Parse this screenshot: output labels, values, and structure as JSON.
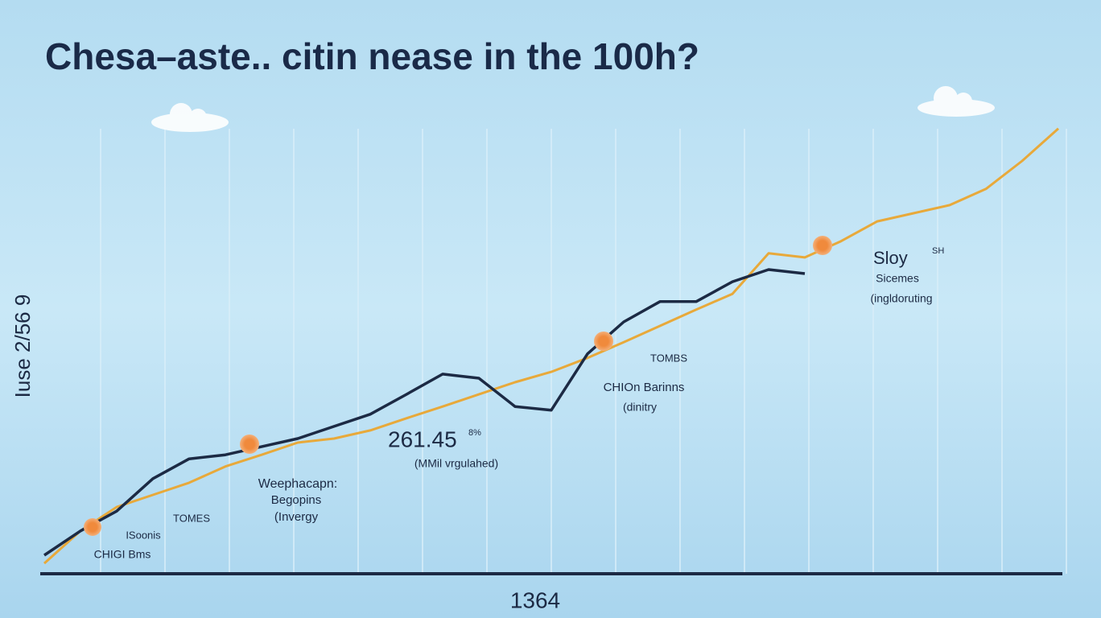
{
  "chart_data": {
    "type": "line",
    "title": "Chesa–aste.. citin nease in the 100h?",
    "y_label": "Iuse 2/56 9",
    "x_label": "1364",
    "categories": [
      null,
      null,
      null,
      null,
      null,
      null,
      null,
      null,
      null,
      null,
      null,
      null,
      null,
      null,
      null,
      null,
      null,
      null,
      null,
      null,
      null,
      null,
      null,
      null,
      null,
      null,
      null,
      null,
      null
    ],
    "ylim": [
      0,
      100
    ],
    "series": [
      {
        "color": "#1c2a44",
        "values": [
          4.1,
          9.5,
          13.9,
          21.1,
          25.5,
          26.4,
          28.2,
          30,
          32.7,
          35.4,
          39.8,
          44.3,
          43.4,
          37.1,
          36.3,
          48.8,
          55.9,
          60.4,
          60.4,
          64.8,
          67.5,
          66.6,
          null,
          null,
          null,
          null,
          null,
          null,
          null
        ]
      },
      {
        "color": "#e8a93a",
        "values": [
          2.3,
          9.5,
          14.8,
          17.5,
          20.2,
          23.8,
          26.4,
          29.1,
          30,
          31.8,
          34.5,
          37.1,
          39.8,
          42.5,
          44.8,
          47.9,
          51.4,
          55,
          58.6,
          62.1,
          71.1,
          70.2,
          73.8,
          78.2,
          80,
          81.8,
          85.4,
          91.6,
          98.8
        ]
      }
    ],
    "annotations": [
      "Sloy",
      "SH",
      "Sicemes",
      "(ingldoruting",
      "TOMBS",
      "CHIOn Barinns",
      "(dinitry",
      "261.45",
      "8%",
      "(MMil vrgulahed)",
      "Weephacapn:",
      "Begopins",
      "(Invergy",
      "TOMES",
      "ISoonis",
      "CHIGI Bms"
    ]
  }
}
